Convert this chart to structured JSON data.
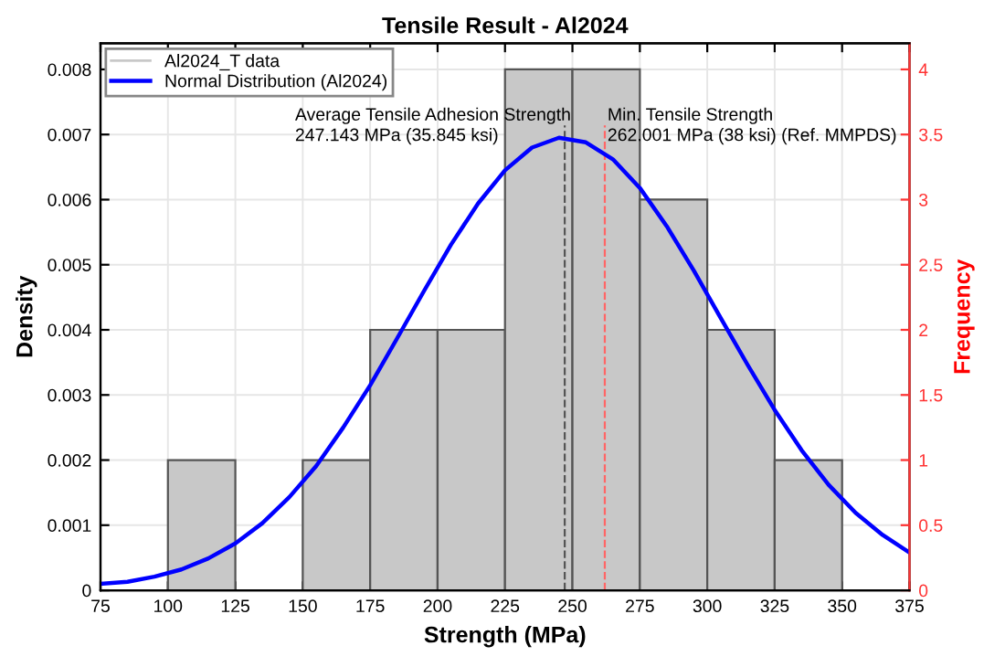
{
  "chart_data": {
    "type": "histogram",
    "title": "Tensile Result - Al2024",
    "xlabel": "Strength (MPa)",
    "ylabel": "Density",
    "y2label": "Frequency",
    "bins": [
      100,
      125,
      150,
      175,
      200,
      225,
      250,
      275,
      300,
      325,
      350
    ],
    "series": [
      {
        "name": "Al2024_T data",
        "type": "histogram",
        "color": "#c8c8c8",
        "values": [
          0.002,
          0,
          0.002,
          0.004,
          0.004,
          0.008,
          0.008,
          0.006,
          0.004,
          0.002
        ]
      },
      {
        "name": "Normal Distribution (Al2024)",
        "type": "line",
        "color": "#0000ff",
        "x": [
          75,
          85,
          95,
          105,
          115,
          125,
          135,
          145,
          155,
          165,
          175,
          185,
          195,
          205,
          215,
          225,
          235,
          245,
          255,
          265,
          275,
          285,
          295,
          305,
          315,
          325,
          335,
          345,
          355,
          365,
          375
        ],
        "values": [
          0.0001,
          0.00013,
          0.00021,
          0.00032,
          0.00049,
          0.00072,
          0.00103,
          0.00143,
          0.00191,
          0.0025,
          0.00315,
          0.00387,
          0.0046,
          0.00531,
          0.00594,
          0.00645,
          0.0068,
          0.00695,
          0.00688,
          0.00662,
          0.00618,
          0.00559,
          0.00491,
          0.00418,
          0.00346,
          0.00277,
          0.00215,
          0.00162,
          0.00119,
          0.00085,
          0.00058
        ]
      }
    ],
    "xlim": [
      75,
      375
    ],
    "xticks": [
      75,
      100,
      125,
      150,
      175,
      200,
      225,
      250,
      275,
      300,
      325,
      350,
      375
    ],
    "ylim": [
      0,
      0.0084
    ],
    "yticks": [
      0,
      0.001,
      0.002,
      0.003,
      0.004,
      0.005,
      0.006,
      0.007,
      0.008
    ],
    "y2lim": [
      0,
      4.2
    ],
    "y2ticks": [
      0,
      0.5,
      1,
      1.5,
      2,
      2.5,
      3,
      3.5,
      4
    ],
    "ref_lines": [
      {
        "axis": "x",
        "value": 247.143,
        "label": "Average Tensile Adhesion Strength\n247.143 MPa (35.845 ksi)",
        "color": "#555555",
        "line_style": "dashed"
      },
      {
        "axis": "x",
        "value": 262.001,
        "label": "Min. Tensile Strength\n262.001 MPa (38 ksi) (Ref. MMPDS)",
        "color": "#ff6666",
        "line_style": "dashed"
      }
    ],
    "grid": true,
    "legend": "top left"
  }
}
